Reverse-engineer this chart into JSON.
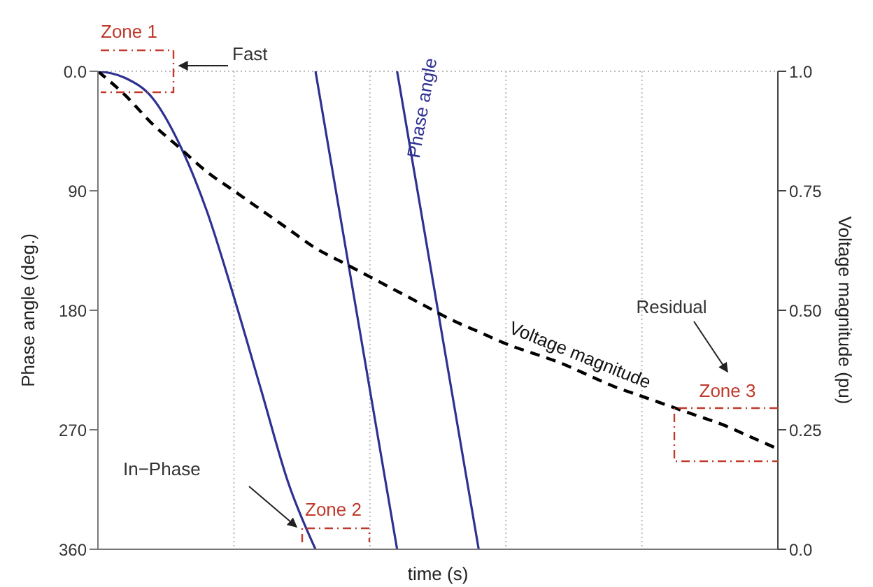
{
  "chart_data": {
    "type": "line",
    "xlabel": "time (s)",
    "ylabel": "Phase angle (deg.)",
    "y2label": "Voltage magnitude (pu)",
    "categories": [
      null,
      null,
      null,
      null,
      null,
      null,
      null,
      null,
      null,
      null,
      null,
      null,
      null,
      null,
      null,
      null,
      null,
      null,
      null,
      null,
      null,
      null,
      null,
      null,
      null,
      null
    ],
    "series": [
      {
        "color": "#2e3192",
        "values": [
          0,
          5,
          20,
          55,
          105,
          170,
          240,
          310,
          360,
          null,
          null,
          null,
          null,
          null,
          null,
          null,
          null,
          null,
          null,
          null,
          null,
          null,
          null,
          null,
          null,
          null
        ]
      },
      {
        "color": "#2e3192",
        "values": [
          null,
          null,
          null,
          null,
          null,
          null,
          null,
          null,
          0,
          120,
          240,
          360,
          null,
          null,
          null,
          null,
          null,
          null,
          null,
          null,
          null,
          null,
          null,
          null,
          null,
          null
        ]
      },
      {
        "name": "Phase angle",
        "color": "#2e3192",
        "values": [
          null,
          null,
          null,
          null,
          null,
          null,
          null,
          null,
          null,
          null,
          null,
          0,
          120,
          240,
          360,
          null,
          null,
          null,
          null,
          null,
          null,
          null,
          null,
          null,
          null,
          null
        ]
      },
      {
        "name": "Voltage magnitude",
        "color": "#000000",
        "axis": "y2",
        "line_style": "dashed",
        "values": [
          1.0,
          0.95,
          0.89,
          0.84,
          0.79,
          0.75,
          0.71,
          0.67,
          0.63,
          0.6,
          0.57,
          0.54,
          0.51,
          0.48,
          0.455,
          0.43,
          0.41,
          0.39,
          0.365,
          0.34,
          0.32,
          0.3,
          0.28,
          0.26,
          0.235,
          0.21
        ]
      }
    ],
    "ylim": [
      360,
      0
    ],
    "yticks": [
      {
        "value": 0,
        "label": "0.0"
      },
      90,
      180,
      270,
      360
    ],
    "y2lim": [
      0,
      1
    ],
    "y2ticks": [
      {
        "value": 0,
        "label": "0.0"
      },
      0.25,
      {
        "value": 0.5,
        "label": "0.50"
      },
      0.75,
      {
        "value": 1,
        "label": "1.0"
      }
    ],
    "grid": true,
    "legend": false,
    "marker": "none",
    "line_style": "solid",
    "annotations": [
      "Zone 1",
      "Fast",
      "In−Phase",
      "Zone 2",
      "Residual",
      "Zone 3"
    ]
  }
}
